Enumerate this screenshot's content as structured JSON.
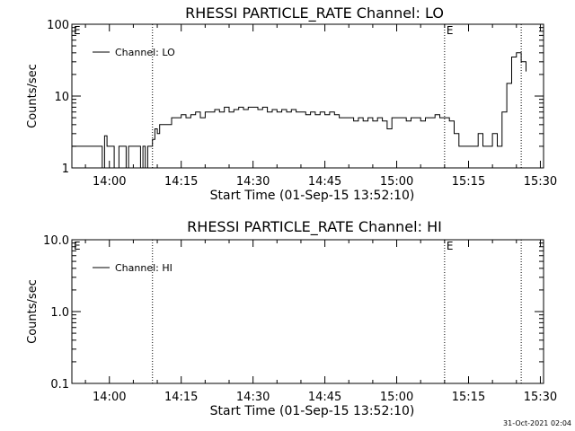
{
  "timestamp": "31-Oct-2021 02:04",
  "chart_data": [
    {
      "type": "line",
      "title": "RHESSI PARTICLE_RATE Channel: LO",
      "xlabel": "Start Time (01-Sep-15 13:52:10)",
      "ylabel": "Counts/sec",
      "yscale": "log",
      "ylim": [
        1,
        100
      ],
      "ytick_labels": [
        "1",
        "10",
        "100"
      ],
      "yticks": [
        1,
        10,
        100
      ],
      "xlim": [
        "13:52:10",
        "15:30:40"
      ],
      "xtick_labels": [
        "14:00",
        "14:15",
        "14:30",
        "14:45",
        "15:00",
        "15:15",
        "15:30"
      ],
      "xticks": [
        "14:00",
        "14:15",
        "14:30",
        "14:45",
        "15:00",
        "15:15",
        "15:30"
      ],
      "vlines": [
        "14:09",
        "15:10",
        "15:26"
      ],
      "markers": [
        {
          "text": "E",
          "x": "13:52:10"
        },
        {
          "text": "E",
          "x": "15:10"
        }
      ],
      "legend": {
        "label": "Channel: LO",
        "position": "top-left"
      },
      "series": [
        {
          "name": "Channel: LO",
          "x": [
            "13:52",
            "13:58",
            "13:58:30",
            "13:59",
            "13:59:30",
            "14:00",
            "14:01",
            "14:02",
            "14:03",
            "14:03:30",
            "14:04",
            "14:05",
            "14:06",
            "14:06:30",
            "14:07",
            "14:07:30",
            "14:08",
            "14:08:30",
            "14:09",
            "14:09:30",
            "14:10",
            "14:10:30",
            "14:11",
            "14:12",
            "14:13",
            "14:14",
            "14:15",
            "14:16",
            "14:17",
            "14:18",
            "14:19",
            "14:20",
            "14:21",
            "14:22",
            "14:23",
            "14:24",
            "14:25",
            "14:26",
            "14:27",
            "14:28",
            "14:29",
            "14:30",
            "14:31",
            "14:32",
            "14:33",
            "14:34",
            "14:35",
            "14:36",
            "14:37",
            "14:38",
            "14:39",
            "14:40",
            "14:41",
            "14:42",
            "14:43",
            "14:44",
            "14:45",
            "14:46",
            "14:47",
            "14:48",
            "14:49",
            "14:50",
            "14:51",
            "14:52",
            "14:53",
            "14:54",
            "14:55",
            "14:56",
            "14:57",
            "14:58",
            "14:59",
            "15:00",
            "15:01",
            "15:02",
            "15:03",
            "15:04",
            "15:05",
            "15:06",
            "15:07",
            "15:08",
            "15:09",
            "15:10",
            "15:11",
            "15:12",
            "15:13",
            "15:14",
            "15:15",
            "15:16",
            "15:17",
            "15:18",
            "15:19",
            "15:20",
            "15:21",
            "15:22",
            "15:23",
            "15:24",
            "15:25",
            "15:26",
            "15:27"
          ],
          "y": [
            2,
            2,
            1,
            2.8,
            2,
            2,
            1,
            2,
            2,
            1,
            2,
            2,
            2,
            1,
            2,
            1,
            2,
            2,
            2.5,
            3.5,
            3,
            4,
            4,
            4,
            5,
            5,
            5.5,
            5,
            5.5,
            6,
            5,
            6,
            6,
            6.5,
            6,
            7,
            6,
            6.5,
            7,
            6.5,
            7,
            7,
            6.5,
            7,
            6,
            6.5,
            6,
            6.5,
            6,
            6.5,
            6,
            6,
            5.5,
            6,
            5.5,
            6,
            5.5,
            6,
            5.5,
            5,
            5,
            5,
            4.5,
            5,
            4.5,
            5,
            4.5,
            5,
            4.5,
            3.5,
            5,
            5,
            5,
            4.5,
            5,
            5,
            4.5,
            5,
            5,
            5.5,
            5,
            5,
            4.5,
            3,
            2,
            2,
            2,
            2,
            3,
            2,
            2,
            3,
            2,
            6,
            15,
            35,
            40,
            30,
            22
          ]
        }
      ]
    },
    {
      "type": "line",
      "title": "RHESSI PARTICLE_RATE Channel: HI",
      "xlabel": "Start Time (01-Sep-15 13:52:10)",
      "ylabel": "Counts/sec",
      "yscale": "log",
      "ylim": [
        0.1,
        10
      ],
      "ytick_labels": [
        "0.1",
        "1.0",
        "10.0"
      ],
      "yticks": [
        0.1,
        1,
        10
      ],
      "xlim": [
        "13:52:10",
        "15:30:40"
      ],
      "xtick_labels": [
        "14:00",
        "14:15",
        "14:30",
        "14:45",
        "15:00",
        "15:15",
        "15:30"
      ],
      "xticks": [
        "14:00",
        "14:15",
        "14:30",
        "14:45",
        "15:00",
        "15:15",
        "15:30"
      ],
      "vlines": [
        "14:09",
        "15:10",
        "15:26"
      ],
      "markers": [
        {
          "text": "E",
          "x": "13:52:10"
        },
        {
          "text": "E",
          "x": "15:10"
        }
      ],
      "legend": {
        "label": "Channel: HI",
        "position": "top-left"
      },
      "series": [
        {
          "name": "Channel: HI",
          "x": [],
          "y": []
        }
      ]
    }
  ]
}
